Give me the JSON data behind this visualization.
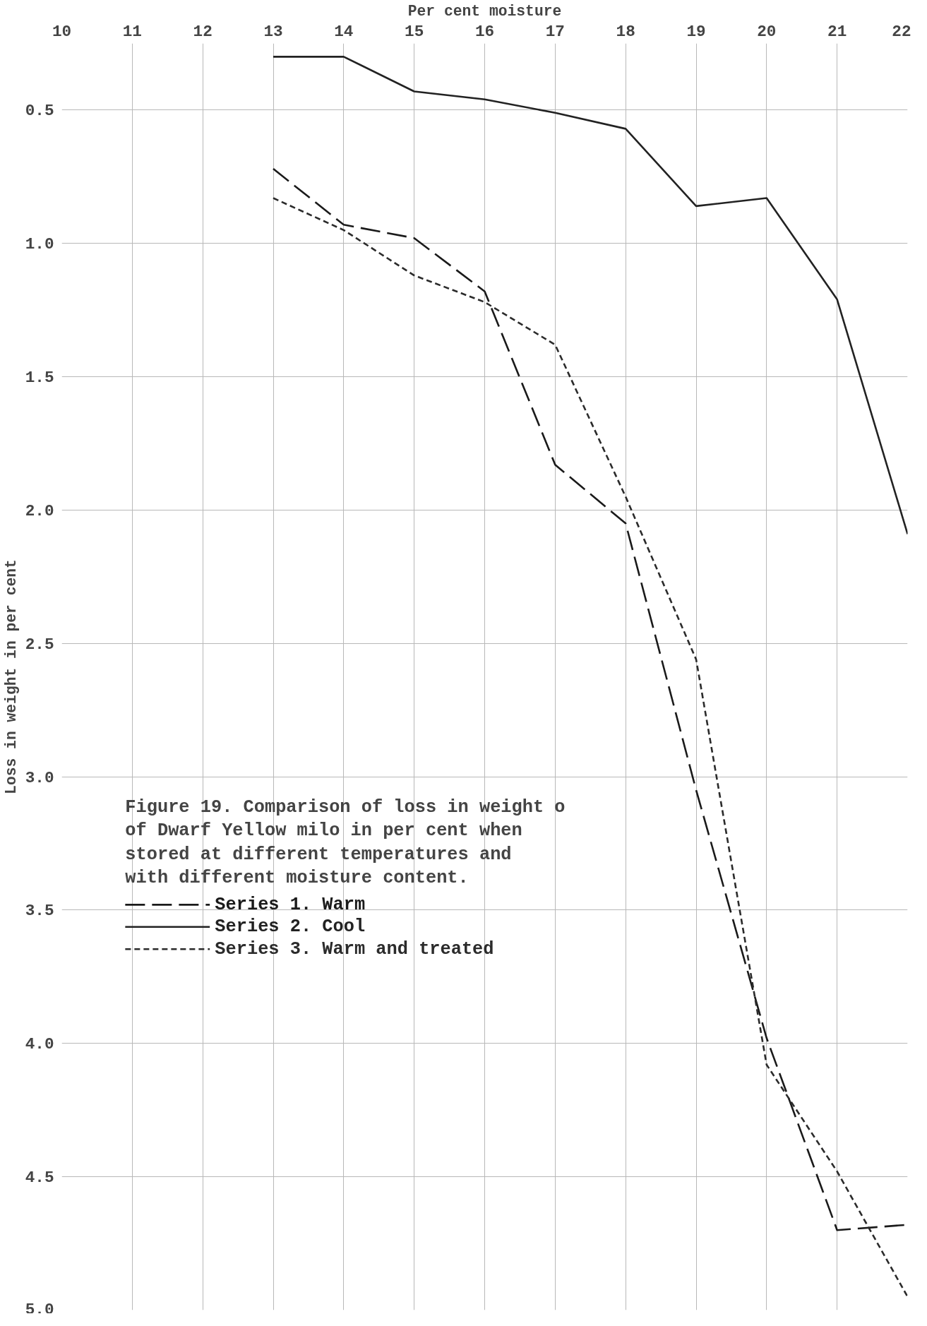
{
  "chart_data": {
    "type": "line",
    "xlabel": "Per cent moisture",
    "ylabel": "Loss in weight in per cent",
    "x": [
      13,
      14,
      15,
      16,
      17,
      18,
      19,
      20,
      21,
      22
    ],
    "series": [
      {
        "name": "Series 1. Warm",
        "color": "#1a1a1a",
        "line_style": "dashed",
        "values": [
          0.72,
          0.93,
          0.98,
          1.18,
          1.83,
          2.05,
          3.05,
          3.98,
          4.7,
          4.68
        ]
      },
      {
        "name": "Series 2. Cool",
        "color": "#222222",
        "line_style": "solid",
        "values": [
          0.3,
          0.3,
          0.43,
          0.46,
          0.51,
          0.57,
          0.86,
          0.83,
          1.21,
          2.09
        ]
      },
      {
        "name": "Series 3. Warm and treated",
        "color": "#2b2b2b",
        "line_style": "dotted",
        "values": [
          0.83,
          0.95,
          1.12,
          1.22,
          1.38,
          1.95,
          2.56,
          4.08,
          4.48,
          4.95
        ]
      }
    ],
    "xlim": [
      10,
      22
    ],
    "xticks": [
      10,
      11,
      12,
      13,
      14,
      15,
      16,
      17,
      18,
      19,
      20,
      21,
      22
    ],
    "ylim": [
      5.0,
      0.25
    ],
    "yticks": [
      0.5,
      {
        "value": 1.0,
        "label": "1.0"
      },
      1.5,
      {
        "value": 2.0,
        "label": "2.0"
      },
      2.5,
      {
        "value": 3.0,
        "label": "3.0"
      },
      3.5,
      {
        "value": 4.0,
        "label": "4.0"
      },
      4.5,
      {
        "value": 5.0,
        "label": "5.0"
      }
    ],
    "grid": true,
    "legend": "left",
    "marker": "none",
    "annotations": [
      "Figure 19. Comparison of loss in weight o\nof Dwarf Yellow milo in per cent when\nstored at different temperatures and\nwith different moisture content."
    ]
  }
}
